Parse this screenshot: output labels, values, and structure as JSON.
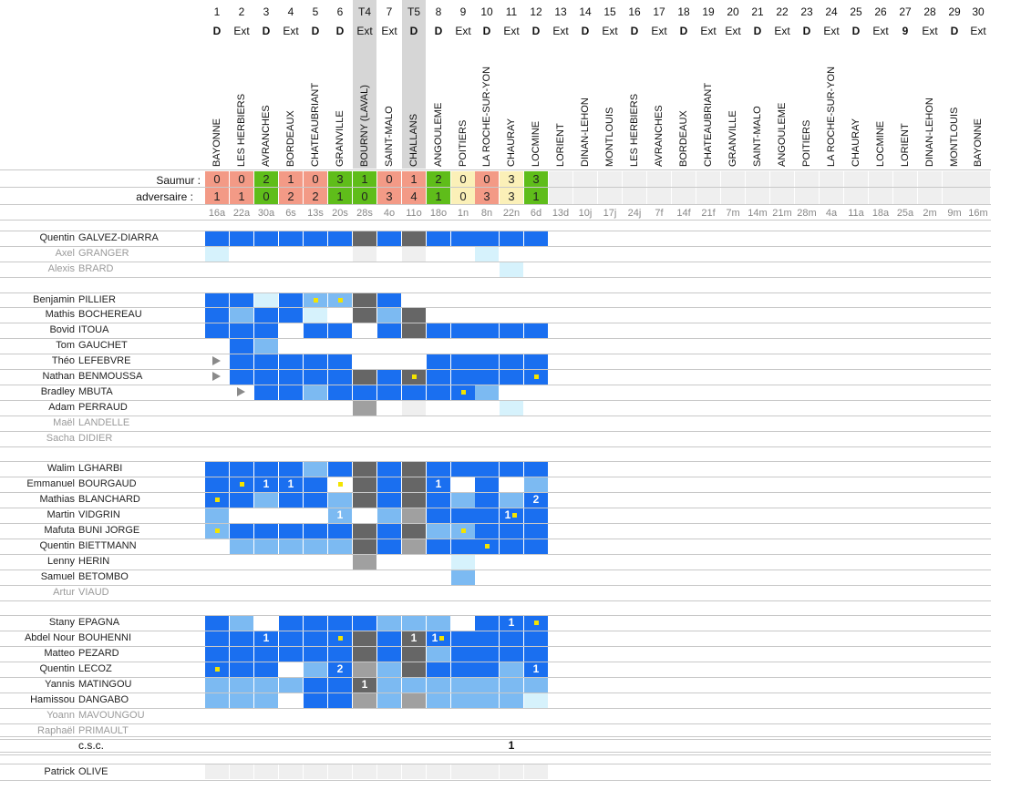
{
  "matches": [
    {
      "num": "1",
      "loc": "D",
      "venue": "BAYONNE",
      "s": "0",
      "a": "1",
      "res": "L",
      "date": "16a"
    },
    {
      "num": "2",
      "loc": "Ext",
      "venue": "LES HERBIERS",
      "s": "0",
      "a": "1",
      "res": "L",
      "date": "22a"
    },
    {
      "num": "3",
      "loc": "D",
      "venue": "AVRANCHES",
      "s": "2",
      "a": "0",
      "res": "W",
      "date": "30a"
    },
    {
      "num": "4",
      "loc": "Ext",
      "venue": "BORDEAUX",
      "s": "1",
      "a": "2",
      "res": "L",
      "date": "6s"
    },
    {
      "num": "5",
      "loc": "D",
      "venue": "CHATEAUBRIANT",
      "s": "0",
      "a": "2",
      "res": "L",
      "date": "13s"
    },
    {
      "num": "6",
      "loc": "D",
      "venue": "GRANVILLE",
      "s": "3",
      "a": "1",
      "res": "W",
      "date": "20s"
    },
    {
      "num": "T4",
      "loc": "Ext",
      "venue": "BOURNY (LAVAL)",
      "s": "1",
      "a": "0",
      "res": "W",
      "date": "28s",
      "cup": true
    },
    {
      "num": "7",
      "loc": "Ext",
      "venue": "SAINT-MALO",
      "s": "0",
      "a": "3",
      "res": "L",
      "date": "4o"
    },
    {
      "num": "T5",
      "loc": "D",
      "venue": "CHALLANS",
      "s": "1",
      "a": "4",
      "res": "L",
      "date": "11o",
      "cup": true
    },
    {
      "num": "8",
      "loc": "D",
      "venue": "ANGOULEME",
      "s": "2",
      "a": "1",
      "res": "W",
      "date": "18o"
    },
    {
      "num": "9",
      "loc": "Ext",
      "venue": "POITIERS",
      "s": "0",
      "a": "0",
      "res": "N",
      "date": "1n"
    },
    {
      "num": "10",
      "loc": "D",
      "venue": "LA ROCHE-SUR-YON",
      "s": "0",
      "a": "3",
      "res": "L",
      "date": "8n"
    },
    {
      "num": "11",
      "loc": "Ext",
      "venue": "CHAURAY",
      "s": "3",
      "a": "3",
      "res": "N",
      "date": "22n"
    },
    {
      "num": "12",
      "loc": "D",
      "venue": "LOCMINE",
      "s": "3",
      "a": "1",
      "res": "W",
      "date": "6d"
    },
    {
      "num": "13",
      "loc": "Ext",
      "venue": "LORIENT",
      "s": "",
      "a": "",
      "res": "",
      "date": "13d"
    },
    {
      "num": "14",
      "loc": "D",
      "venue": "DINAN-LEHON",
      "s": "",
      "a": "",
      "res": "",
      "date": "10j"
    },
    {
      "num": "15",
      "loc": "Ext",
      "venue": "MONTLOUIS",
      "s": "",
      "a": "",
      "res": "",
      "date": "17j"
    },
    {
      "num": "16",
      "loc": "D",
      "venue": "LES HERBIERS",
      "s": "",
      "a": "",
      "res": "",
      "date": "24j"
    },
    {
      "num": "17",
      "loc": "Ext",
      "venue": "AVRANCHES",
      "s": "",
      "a": "",
      "res": "",
      "date": "7f"
    },
    {
      "num": "18",
      "loc": "D",
      "venue": "BORDEAUX",
      "s": "",
      "a": "",
      "res": "",
      "date": "14f"
    },
    {
      "num": "19",
      "loc": "Ext",
      "venue": "CHATEAUBRIANT",
      "s": "",
      "a": "",
      "res": "",
      "date": "21f"
    },
    {
      "num": "20",
      "loc": "Ext",
      "venue": "GRANVILLE",
      "s": "",
      "a": "",
      "res": "",
      "date": "7m"
    },
    {
      "num": "21",
      "loc": "D",
      "venue": "SAINT-MALO",
      "s": "",
      "a": "",
      "res": "",
      "date": "14m"
    },
    {
      "num": "22",
      "loc": "Ext",
      "venue": "ANGOULEME",
      "s": "",
      "a": "",
      "res": "",
      "date": "21m"
    },
    {
      "num": "23",
      "loc": "D",
      "venue": "POITIERS",
      "s": "",
      "a": "",
      "res": "",
      "date": "28m"
    },
    {
      "num": "24",
      "loc": "Ext",
      "venue": "LA ROCHE-SUR-YON",
      "s": "",
      "a": "",
      "res": "",
      "date": "4a"
    },
    {
      "num": "25",
      "loc": "D",
      "venue": "CHAURAY",
      "s": "",
      "a": "",
      "res": "",
      "date": "11a"
    },
    {
      "num": "26",
      "loc": "Ext",
      "venue": "LOCMINE",
      "s": "",
      "a": "",
      "res": "",
      "date": "18a"
    },
    {
      "num": "27",
      "loc": "9",
      "venue": "LORIENT",
      "s": "",
      "a": "",
      "res": "",
      "date": "25a"
    },
    {
      "num": "28",
      "loc": "Ext",
      "venue": "DINAN-LEHON",
      "s": "",
      "a": "",
      "res": "",
      "date": "2m"
    },
    {
      "num": "29",
      "loc": "D",
      "venue": "MONTLOUIS",
      "s": "",
      "a": "",
      "res": "",
      "date": "9m"
    },
    {
      "num": "30",
      "loc": "Ext",
      "venue": "BAYONNE",
      "s": "",
      "a": "",
      "res": "",
      "date": "16m"
    }
  ],
  "score_labels": {
    "saumur": "Saumur :",
    "adversaire": "adversaire :"
  },
  "colors": {
    "win": "#5fbd1a",
    "loss": "#f39a86",
    "draw": "#fbf0b8",
    "blue": "#1a6ff0",
    "light": "#7cbaf2",
    "pale": "#d6f2fc",
    "dark": "#666666",
    "mid": "#a0a0a0",
    "empty": "#efefef",
    "cup": "#d6d6d6"
  },
  "groups": [
    [
      {
        "first": "Quentin",
        "last": "GALVEZ-DIARRA",
        "cells": "BBBBBBDBDBBBBB"
      },
      {
        "first": "Axel",
        "last": "GRANGER",
        "dim": true,
        "cells": "P.....E.E..P.."
      },
      {
        "first": "Alexis",
        "last": "BRARD",
        "dim": true,
        "cells": "............P."
      }
    ],
    [
      {
        "first": "Benjamin",
        "last": "PILLIER",
        "cells": "BBPBLLDB......",
        "marks": {
          "4": "y",
          "5": "y"
        }
      },
      {
        "first": "Mathis",
        "last": "BOCHEREAU",
        "cells": "BLBBP.DLD.....",
        "marks": {}
      },
      {
        "first": "Bovid",
        "last": "ITOUA",
        "cells": "BBB.BB.BDBBBBB",
        "marks": {}
      },
      {
        "first": "Tom",
        "last": "GAUCHET",
        "cells": ".BL...........",
        "marks": {}
      },
      {
        "first": "Théo",
        "last": "LEFEBVRE",
        "cells": ".BBBBB...BBBBB",
        "marks": {
          "0": "t"
        }
      },
      {
        "first": "Nathan",
        "last": "BENMOUSSA",
        "cells": ".BBBBBDBDBBBBB",
        "marks": {
          "0": "t",
          "8": "y",
          "13": "y"
        }
      },
      {
        "first": "Bradley",
        "last": "MBUTA",
        "cells": "..BBLBBBBBBL..",
        "marks": {
          "1": "t",
          "10": "y"
        }
      },
      {
        "first": "Adam",
        "last": "PERRAUD",
        "cells": "......M.E...P.",
        "marks": {}
      },
      {
        "first": "Maël",
        "last": "LANDELLE",
        "dim": true,
        "cells": "..............",
        "marks": {}
      },
      {
        "first": "Sacha",
        "last": "DIDIER",
        "dim": true,
        "cells": "..............",
        "marks": {}
      }
    ],
    [
      {
        "first": "Walim",
        "last": "LGHARBI",
        "cells": "BBBBLBDBDBBBBB",
        "marks": {}
      },
      {
        "first": "Emmanuel",
        "last": "BOURGAUD",
        "cells": "BBBBB.DBDB.B.L",
        "marks": {
          "1": "y",
          "2": "1",
          "3": "1",
          "5": "y",
          "9": "1"
        }
      },
      {
        "first": "Mathias",
        "last": "BLANCHARD",
        "cells": "BBLBBLDBDBLBLB",
        "marks": {
          "0": "y",
          "13": "2"
        }
      },
      {
        "first": "Martin",
        "last": "VIDGRIN",
        "cells": "L....L.LMBBBBB",
        "marks": {
          "5": "1",
          "12": "1y"
        }
      },
      {
        "first": "Mafuta",
        "last": "BUNI JORGE",
        "cells": "LBBBBBDBDLLBBB",
        "marks": {
          "0": "y",
          "10": "y"
        }
      },
      {
        "first": "Quentin",
        "last": "BIETTMANN",
        "cells": ".LLLLLDBMBBBBB",
        "marks": {
          "11": "y"
        }
      },
      {
        "first": "Lenny",
        "last": "HERIN",
        "cells": "......M...P...",
        "marks": {}
      },
      {
        "first": "Samuel",
        "last": "BETOMBO",
        "cells": "..........L...",
        "marks": {}
      },
      {
        "first": "Artur",
        "last": "VIAUD",
        "dim": true,
        "cells": "..............",
        "marks": {}
      }
    ],
    [
      {
        "first": "Stany",
        "last": "EPAGNA",
        "cells": "BL.BBBBLLL.BBB",
        "marks": {
          "12": "1",
          "13": "y"
        }
      },
      {
        "first": "Abdel Nour",
        "last": "BOUHENNI",
        "cells": "BBBBBBDBDBBBBB",
        "marks": {
          "2": "1",
          "5": "y",
          "8": "1",
          "9": "1y"
        }
      },
      {
        "first": "Matteo",
        "last": "PEZARD",
        "cells": "BBBBBBDBDLBBBB",
        "marks": {}
      },
      {
        "first": "Quentin",
        "last": "LECOZ",
        "cells": "BBB.LBMLDBBBLB",
        "marks": {
          "0": "y",
          "5": "2",
          "13": "1"
        }
      },
      {
        "first": "Yannis",
        "last": "MATINGOU",
        "cells": "LLLLBBDLLLLLLL",
        "marks": {
          "6": "1"
        }
      },
      {
        "first": "Hamissou",
        "last": "DANGABO",
        "cells": "LLL.BBMLMLLLLP",
        "marks": {}
      },
      {
        "first": "Yoann",
        "last": "MAVOUNGOU",
        "dim": true,
        "cells": "..............",
        "marks": {}
      },
      {
        "first": "Raphaël",
        "last": "PRIMAULT",
        "dim": true,
        "cells": "..............",
        "marks": {}
      }
    ]
  ],
  "csc": {
    "label": "c.s.c.",
    "value": "1"
  },
  "coach": {
    "first": "Patrick",
    "last": "OLIVE"
  }
}
